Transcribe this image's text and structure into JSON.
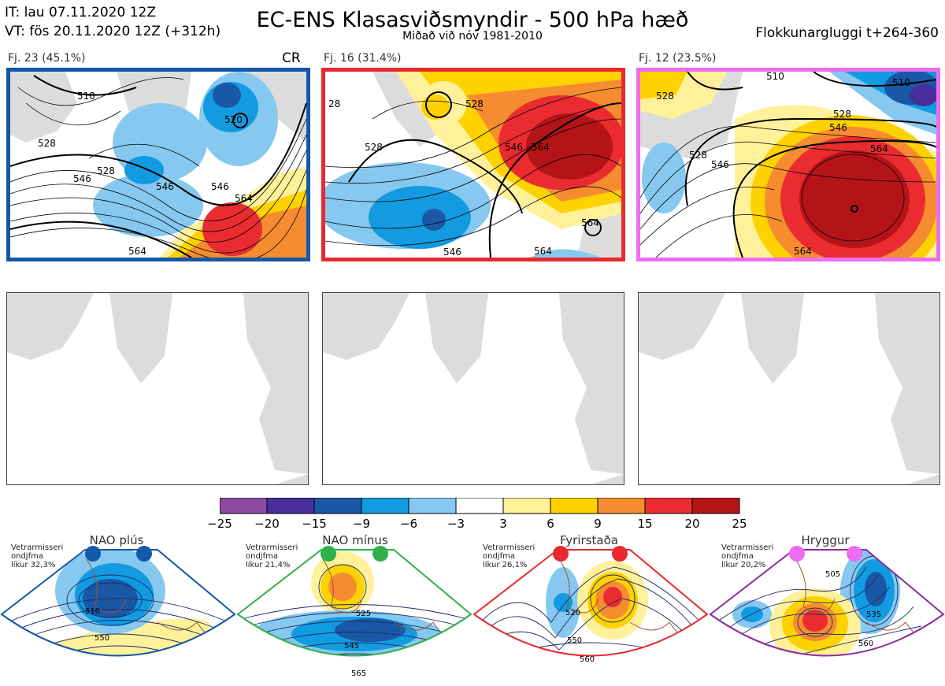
{
  "header": {
    "init_time": "IT: lau 07.11.2020 12Z",
    "valid_time": "VT: fös 20.11.2020 12Z  (+312h)",
    "title": "EC-ENS Klasasviðsmyndir - 500 hPa hæð",
    "subtitle": "Miðað við nóv 1981-2010",
    "window": "Flokkunargluggi t+264-360"
  },
  "clusters": [
    {
      "label": "Fj. 23 (45.1%)",
      "tag": "CR",
      "frame_color": "#1458a8",
      "contours": [
        "510",
        "528",
        "546",
        "528",
        "546",
        "564",
        "564",
        "520"
      ]
    },
    {
      "label": "Fj. 16 (31.4%)",
      "tag": "",
      "frame_color": "#e8292f",
      "contours": [
        "528",
        "528",
        "546",
        "564",
        "546",
        "564",
        "564",
        "28"
      ]
    },
    {
      "label": "Fj. 12 (23.5%)",
      "tag": "",
      "frame_color": "#ee6cee",
      "contours": [
        "510",
        "528",
        "546",
        "564",
        "546",
        "528",
        "564",
        "510"
      ]
    }
  ],
  "colorbar": {
    "ticks": [
      "−25",
      "−20",
      "−15",
      "−9",
      "−6",
      "−3",
      "3",
      "6",
      "9",
      "15",
      "20",
      "25"
    ],
    "colors": [
      "#8b4aa0",
      "#4a2d9c",
      "#1a58a6",
      "#129be0",
      "#86c8ef",
      "#ffffff",
      "#fff19a",
      "#fdd200",
      "#f68c30",
      "#ea2c30",
      "#b41418"
    ]
  },
  "regimes": [
    {
      "name": "NAO plús",
      "note": [
        "Vetrarmisseri",
        "ondjfma",
        "líkur 32,3%"
      ],
      "dot_color": "#1458a8",
      "frame_color": "#1458a8",
      "contours": [
        "510",
        "550"
      ]
    },
    {
      "name": "NAO mínus",
      "note": [
        "Vetrarmisseri",
        "ondjfma",
        "líkur 21,4%"
      ],
      "dot_color": "#2fb04a",
      "frame_color": "#2fb04a",
      "contours": [
        "525",
        "545",
        "565"
      ]
    },
    {
      "name": "Fyrirstaða",
      "note": [
        "Vetrarmisseri",
        "ondjfma",
        "líkur 26,1%"
      ],
      "dot_color": "#e8292f",
      "frame_color": "#e8292f",
      "contours": [
        "520",
        "550",
        "560"
      ]
    },
    {
      "name": "Hryggur",
      "note": [
        "Vetrarmisseri",
        "ondjfma",
        "líkur 20,2%"
      ],
      "dot_color": "#ee6cee",
      "frame_color": "#8e2c9c",
      "contours": [
        "505",
        "535",
        "560"
      ]
    }
  ]
}
